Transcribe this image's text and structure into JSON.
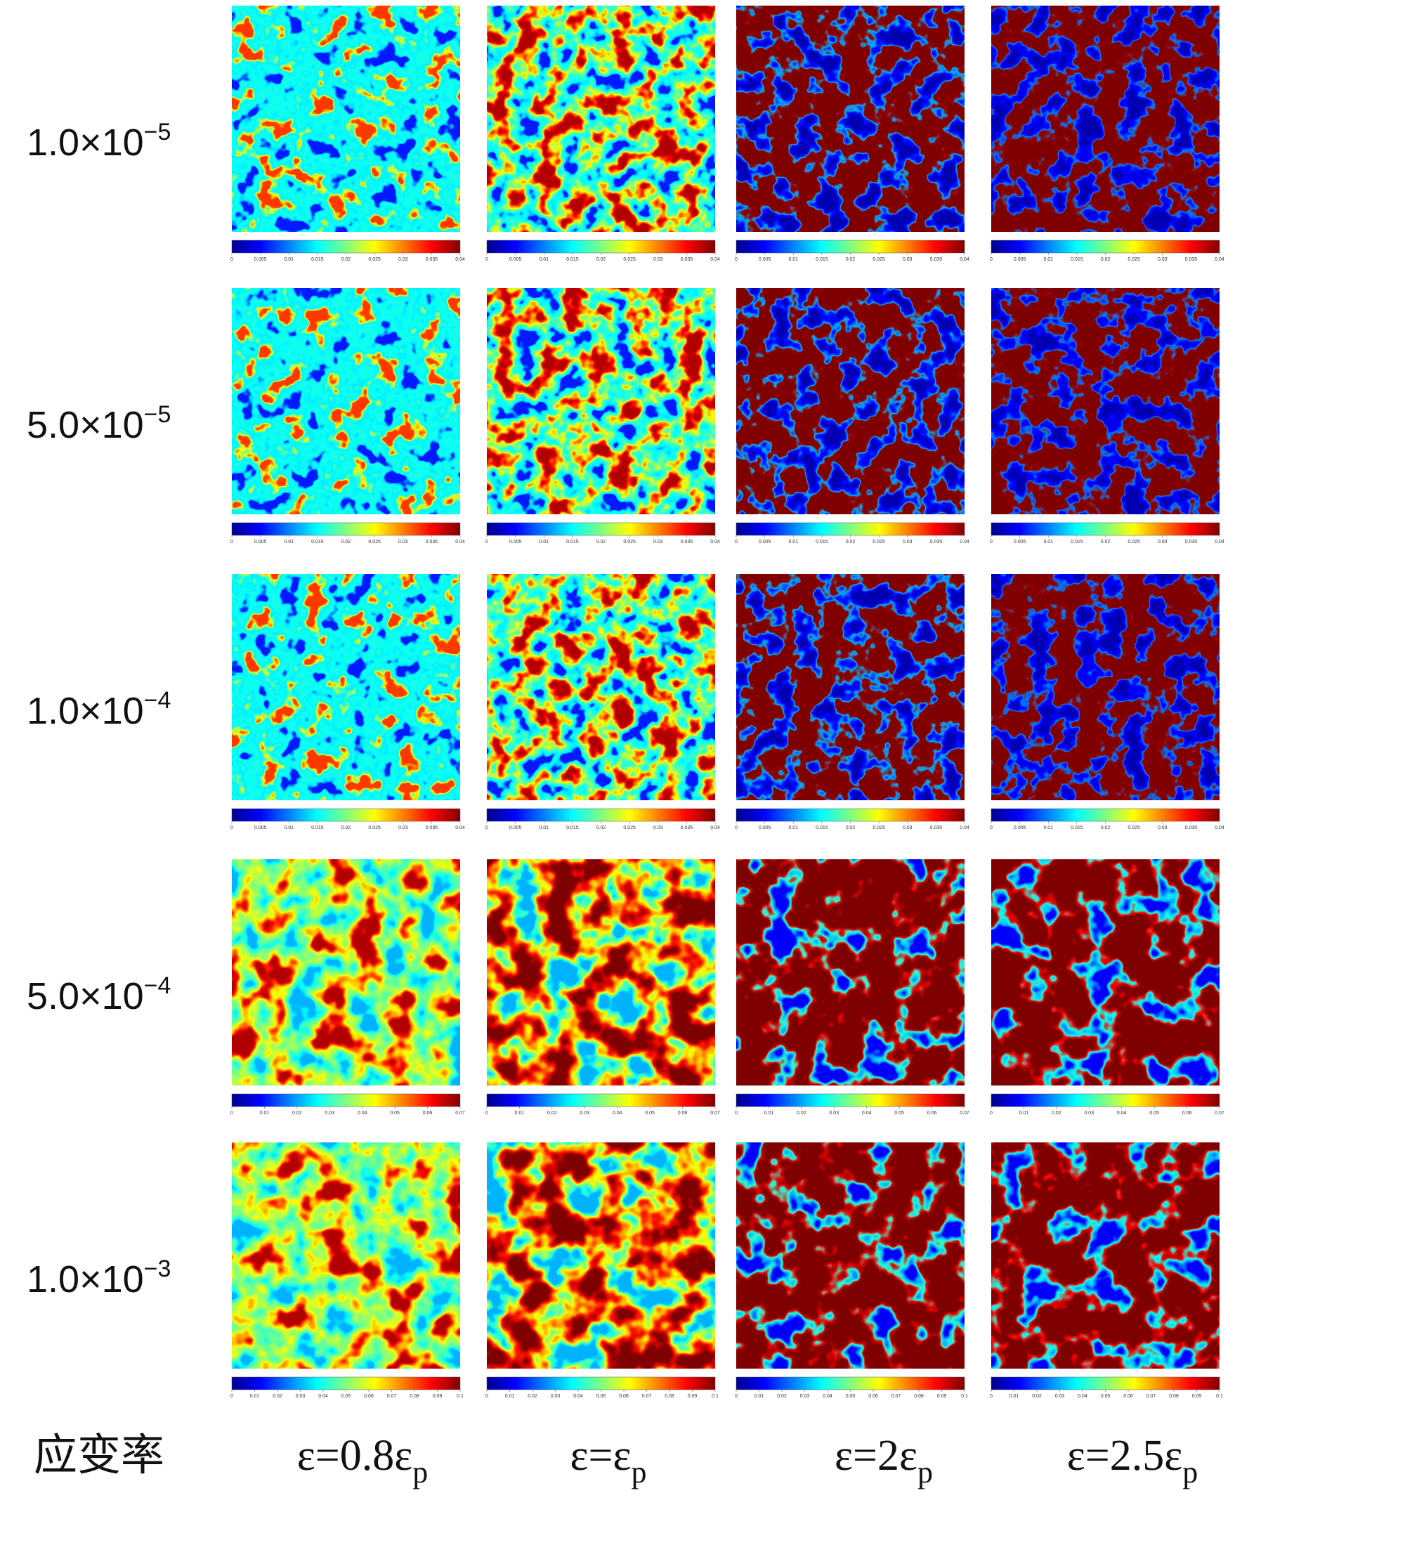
{
  "rows": [
    {
      "label": {
        "base": "1.0×10",
        "exponent": "−5"
      },
      "colorbar_ticks": [
        0,
        0.005,
        0.01,
        0.015,
        0.02,
        0.025,
        0.03,
        0.035,
        0.04
      ]
    },
    {
      "label": {
        "base": "5.0×10",
        "exponent": "−5"
      },
      "colorbar_ticks": [
        0,
        0.005,
        0.01,
        0.015,
        0.02,
        0.025,
        0.03,
        0.035,
        0.04
      ]
    },
    {
      "label": {
        "base": "1.0×10",
        "exponent": "−4"
      },
      "colorbar_ticks": [
        0,
        0.005,
        0.01,
        0.015,
        0.02,
        0.025,
        0.03,
        0.035,
        0.04
      ]
    },
    {
      "label": {
        "base": "5.0×10",
        "exponent": "−4"
      },
      "colorbar_ticks": [
        0,
        0.01,
        0.02,
        0.03,
        0.04,
        0.05,
        0.06,
        0.07
      ]
    },
    {
      "label": {
        "base": "1.0×10",
        "exponent": "−3"
      },
      "colorbar_ticks": [
        0,
        0.01,
        0.02,
        0.03,
        0.04,
        0.05,
        0.06,
        0.07,
        0.08,
        0.09,
        0.1
      ]
    }
  ],
  "columns": [
    {
      "label": "ε=0.8ε",
      "subscript": "p"
    },
    {
      "label": "ε=ε",
      "subscript": "p"
    },
    {
      "label": "ε=2ε",
      "subscript": "p"
    },
    {
      "label": "ε=2.5ε",
      "subscript": "p"
    }
  ],
  "corner_label": "应变率"
}
